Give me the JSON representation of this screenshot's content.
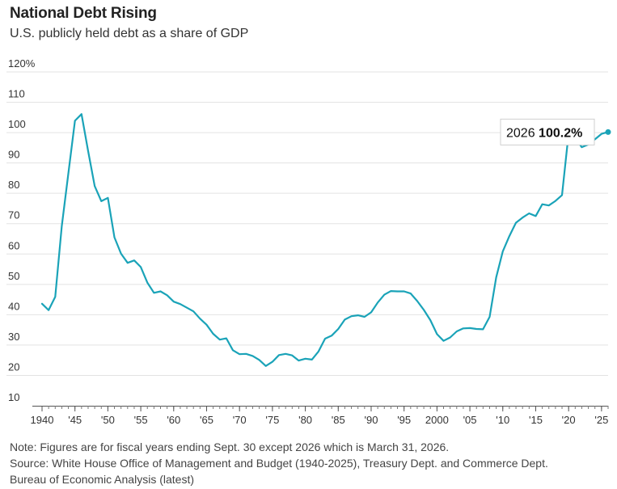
{
  "title": "National Debt Rising",
  "subtitle": "U.S. publicly held debt as a share of GDP",
  "notes": {
    "note": "Note: Figures are for fiscal years ending Sept. 30 except 2026 which is March 31, 2026.",
    "source_line1": "Source: White House Office of Management and Budget (1940-2025), Treasury Dept. and Commerce Dept.",
    "source_line2": "Bureau of Economic Analysis (latest)"
  },
  "chart_data": {
    "type": "line",
    "line_color": "#1aa3b8",
    "grid": true,
    "ylim": [
      10,
      120
    ],
    "y_ticks": [
      {
        "value": 120,
        "label": "120%"
      },
      {
        "value": 110,
        "label": "110"
      },
      {
        "value": 100,
        "label": "100"
      },
      {
        "value": 90,
        "label": "90"
      },
      {
        "value": 80,
        "label": "80"
      },
      {
        "value": 70,
        "label": "70"
      },
      {
        "value": 60,
        "label": "60"
      },
      {
        "value": 50,
        "label": "50"
      },
      {
        "value": 40,
        "label": "40"
      },
      {
        "value": 30,
        "label": "30"
      },
      {
        "value": 20,
        "label": "20"
      },
      {
        "value": 10,
        "label": "10"
      }
    ],
    "x_ticks": [
      {
        "value": 1940,
        "label": "1940"
      },
      {
        "value": 1945,
        "label": "'45"
      },
      {
        "value": 1950,
        "label": "'50"
      },
      {
        "value": 1955,
        "label": "'55"
      },
      {
        "value": 1960,
        "label": "'60"
      },
      {
        "value": 1965,
        "label": "'65"
      },
      {
        "value": 1970,
        "label": "'70"
      },
      {
        "value": 1975,
        "label": "'75"
      },
      {
        "value": 1980,
        "label": "'80"
      },
      {
        "value": 1985,
        "label": "'85"
      },
      {
        "value": 1990,
        "label": "'90"
      },
      {
        "value": 1995,
        "label": "'95"
      },
      {
        "value": 2000,
        "label": "2000"
      },
      {
        "value": 2005,
        "label": "'05"
      },
      {
        "value": 2010,
        "label": "'10"
      },
      {
        "value": 2015,
        "label": "'15"
      },
      {
        "value": 2020,
        "label": "'20"
      },
      {
        "value": 2025,
        "label": "'25"
      }
    ],
    "xlim": [
      1940,
      2026
    ],
    "annotation": {
      "x": 2026,
      "y": 100.2,
      "year_text": "2026",
      "value_text": "100.2%"
    },
    "x": [
      1940,
      1941,
      1942,
      1943,
      1944,
      1945,
      1946,
      1947,
      1948,
      1949,
      1950,
      1951,
      1952,
      1953,
      1954,
      1955,
      1956,
      1957,
      1958,
      1959,
      1960,
      1961,
      1962,
      1963,
      1964,
      1965,
      1966,
      1967,
      1968,
      1969,
      1970,
      1971,
      1972,
      1973,
      1974,
      1975,
      1976,
      1977,
      1978,
      1979,
      1980,
      1981,
      1982,
      1983,
      1984,
      1985,
      1986,
      1987,
      1988,
      1989,
      1990,
      1991,
      1992,
      1993,
      1994,
      1995,
      1996,
      1997,
      1998,
      1999,
      2000,
      2001,
      2002,
      2003,
      2004,
      2005,
      2006,
      2007,
      2008,
      2009,
      2010,
      2011,
      2012,
      2013,
      2014,
      2015,
      2016,
      2017,
      2018,
      2019,
      2020,
      2021,
      2022,
      2023,
      2024,
      2025,
      2026
    ],
    "values": [
      43.6,
      41.5,
      45.9,
      69.2,
      86.7,
      103.9,
      106.1,
      93.9,
      82.4,
      77.4,
      78.5,
      65.5,
      60.1,
      57.1,
      57.9,
      55.7,
      50.6,
      47.2,
      47.7,
      46.4,
      44.3,
      43.5,
      42.3,
      41.1,
      38.7,
      36.7,
      33.7,
      31.8,
      32.2,
      28.3,
      27.0,
      27.1,
      26.4,
      25.1,
      23.1,
      24.5,
      26.7,
      27.1,
      26.6,
      24.9,
      25.5,
      25.2,
      27.9,
      32.1,
      33.1,
      35.3,
      38.4,
      39.5,
      39.8,
      39.3,
      40.8,
      44.0,
      46.6,
      47.8,
      47.7,
      47.7,
      47.0,
      44.5,
      41.6,
      38.2,
      33.6,
      31.4,
      32.5,
      34.5,
      35.5,
      35.6,
      35.3,
      35.2,
      39.3,
      52.3,
      60.9,
      65.9,
      70.3,
      72.0,
      73.4,
      72.5,
      76.4,
      76.0,
      77.5,
      79.4,
      99.8,
      98.4,
      95.2,
      96.1,
      97.8,
      99.6,
      100.2
    ]
  }
}
